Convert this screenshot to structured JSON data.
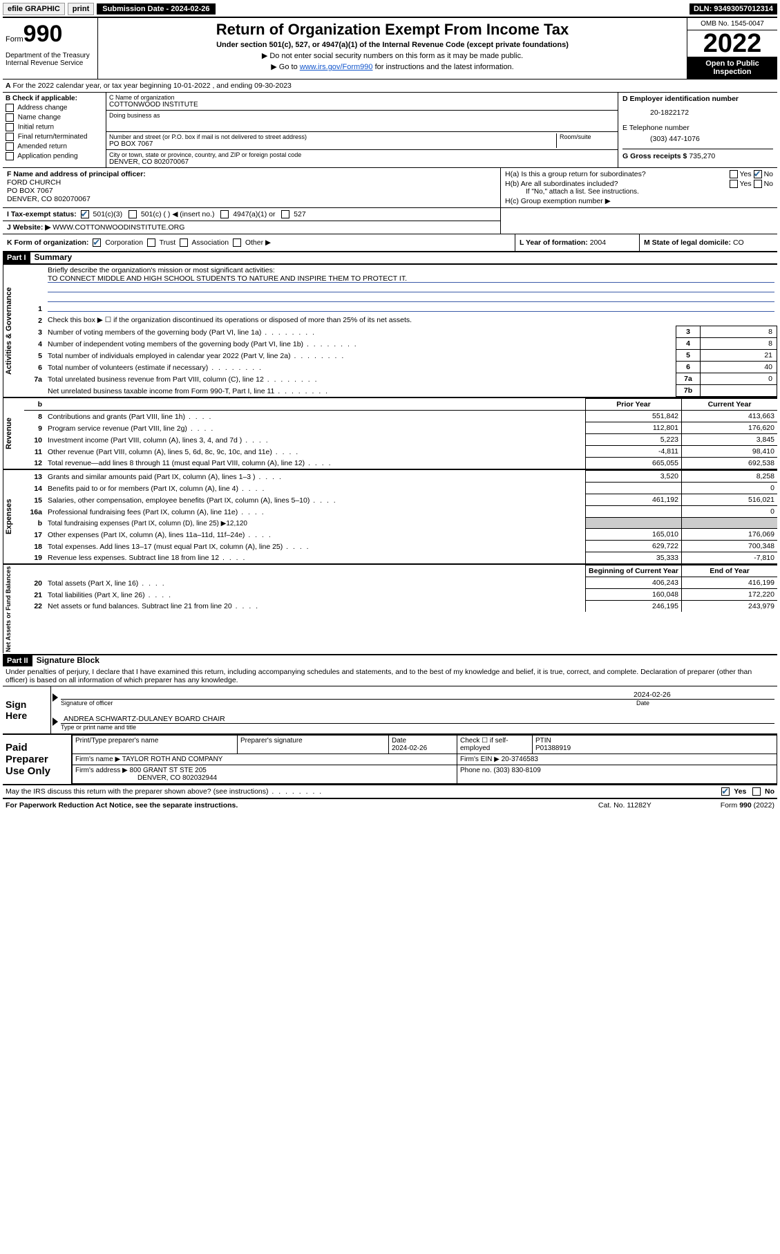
{
  "topbar": {
    "efile": "efile GRAPHIC",
    "print": "print",
    "submission": "Submission Date - 2024-02-26",
    "dln": "DLN: 93493057012314"
  },
  "header": {
    "form_word": "Form",
    "form_num": "990",
    "dept": "Department of the Treasury Internal Revenue Service",
    "title": "Return of Organization Exempt From Income Tax",
    "sub": "Under section 501(c), 527, or 4947(a)(1) of the Internal Revenue Code (except private foundations)",
    "note1": "▶ Do not enter social security numbers on this form as it may be made public.",
    "note2_pre": "▶ Go to ",
    "note2_link": "www.irs.gov/Form990",
    "note2_post": " for instructions and the latest information.",
    "omb": "OMB No. 1545-0047",
    "year": "2022",
    "open": "Open to Public Inspection"
  },
  "rowA": {
    "label_a": "A",
    "text": "For the 2022 calendar year, or tax year beginning 10-01-2022   , and ending 09-30-2023"
  },
  "colB": {
    "label": "B Check if applicable:",
    "items": [
      "Address change",
      "Name change",
      "Initial return",
      "Final return/terminated",
      "Amended return",
      "Application pending"
    ]
  },
  "colC": {
    "c_label": "C Name of organization",
    "org": "COTTONWOOD INSTITUTE",
    "dba_label": "Doing business as",
    "addr_label": "Number and street (or P.O. box if mail is not delivered to street address)",
    "room": "Room/suite",
    "addr": "PO BOX 7067",
    "city_label": "City or town, state or province, country, and ZIP or foreign postal code",
    "city": "DENVER, CO  802070067"
  },
  "colD": {
    "d_label": "D Employer identification number",
    "ein": "20-1822172",
    "e_label": "E Telephone number",
    "phone": "(303) 447-1076",
    "g_label": "G Gross receipts $",
    "gross": "735,270"
  },
  "rowF": {
    "f_label": "F Name and address of principal officer:",
    "name": "FORD CHURCH",
    "addr": "PO BOX 7067",
    "city": "DENVER, CO  802070067",
    "ha": "H(a)  Is this a group return for subordinates?",
    "ha_yes": "Yes",
    "ha_no": "No",
    "hb": "H(b)  Are all subordinates included?",
    "hb_note": "If \"No,\" attach a list. See instructions.",
    "hc": "H(c)  Group exemption number ▶"
  },
  "rowI": {
    "label": "I   Tax-exempt status:",
    "opts": [
      "501(c)(3)",
      "501(c) (  ) ◀ (insert no.)",
      "4947(a)(1) or",
      "527"
    ]
  },
  "rowJ": {
    "label": "J   Website: ▶",
    "url": "WWW.COTTONWOODINSTITUTE.ORG"
  },
  "rowK": {
    "label": "K Form of organization:",
    "opts": [
      "Corporation",
      "Trust",
      "Association",
      "Other ▶"
    ],
    "l_label": "L Year of formation:",
    "l_val": "2004",
    "m_label": "M State of legal domicile:",
    "m_val": "CO"
  },
  "part1": {
    "hdr": "Part I",
    "title": "Summary",
    "side1": "Activities & Governance",
    "side2": "Revenue",
    "side3": "Expenses",
    "side4": "Net Assets or Fund Balances",
    "q1_label": "Briefly describe the organization's mission or most significant activities:",
    "q1_text": "TO CONNECT MIDDLE AND HIGH SCHOOL STUDENTS TO NATURE AND INSPIRE THEM TO PROTECT IT.",
    "q2": "Check this box ▶ ☐  if the organization discontinued its operations or disposed of more than 25% of its net assets.",
    "lines_gov": [
      {
        "n": "3",
        "d": "Number of voting members of the governing body (Part VI, line 1a)",
        "b": "3",
        "v": "8"
      },
      {
        "n": "4",
        "d": "Number of independent voting members of the governing body (Part VI, line 1b)",
        "b": "4",
        "v": "8"
      },
      {
        "n": "5",
        "d": "Total number of individuals employed in calendar year 2022 (Part V, line 2a)",
        "b": "5",
        "v": "21"
      },
      {
        "n": "6",
        "d": "Total number of volunteers (estimate if necessary)",
        "b": "6",
        "v": "40"
      },
      {
        "n": "7a",
        "d": "Total unrelated business revenue from Part VIII, column (C), line 12",
        "b": "7a",
        "v": "0"
      },
      {
        "n": "",
        "d": "Net unrelated business taxable income from Form 990-T, Part I, line 11",
        "b": "7b",
        "v": ""
      }
    ],
    "col_prior": "Prior Year",
    "col_curr": "Current Year",
    "col_begin": "Beginning of Current Year",
    "col_end": "End of Year",
    "lines_rev": [
      {
        "n": "8",
        "d": "Contributions and grants (Part VIII, line 1h)",
        "p": "551,842",
        "c": "413,663"
      },
      {
        "n": "9",
        "d": "Program service revenue (Part VIII, line 2g)",
        "p": "112,801",
        "c": "176,620"
      },
      {
        "n": "10",
        "d": "Investment income (Part VIII, column (A), lines 3, 4, and 7d )",
        "p": "5,223",
        "c": "3,845"
      },
      {
        "n": "11",
        "d": "Other revenue (Part VIII, column (A), lines 5, 6d, 8c, 9c, 10c, and 11e)",
        "p": "-4,811",
        "c": "98,410"
      },
      {
        "n": "12",
        "d": "Total revenue—add lines 8 through 11 (must equal Part VIII, column (A), line 12)",
        "p": "665,055",
        "c": "692,538"
      }
    ],
    "lines_exp": [
      {
        "n": "13",
        "d": "Grants and similar amounts paid (Part IX, column (A), lines 1–3 )",
        "p": "3,520",
        "c": "8,258"
      },
      {
        "n": "14",
        "d": "Benefits paid to or for members (Part IX, column (A), line 4)",
        "p": "",
        "c": "0"
      },
      {
        "n": "15",
        "d": "Salaries, other compensation, employee benefits (Part IX, column (A), lines 5–10)",
        "p": "461,192",
        "c": "516,021"
      },
      {
        "n": "16a",
        "d": "Professional fundraising fees (Part IX, column (A), line 11e)",
        "p": "",
        "c": "0"
      },
      {
        "n": "b",
        "d": "Total fundraising expenses (Part IX, column (D), line 25) ▶12,120",
        "p": null,
        "c": null
      },
      {
        "n": "17",
        "d": "Other expenses (Part IX, column (A), lines 11a–11d, 11f–24e)",
        "p": "165,010",
        "c": "176,069"
      },
      {
        "n": "18",
        "d": "Total expenses. Add lines 13–17 (must equal Part IX, column (A), line 25)",
        "p": "629,722",
        "c": "700,348"
      },
      {
        "n": "19",
        "d": "Revenue less expenses. Subtract line 18 from line 12",
        "p": "35,333",
        "c": "-7,810"
      }
    ],
    "lines_net": [
      {
        "n": "20",
        "d": "Total assets (Part X, line 16)",
        "p": "406,243",
        "c": "416,199"
      },
      {
        "n": "21",
        "d": "Total liabilities (Part X, line 26)",
        "p": "160,048",
        "c": "172,220"
      },
      {
        "n": "22",
        "d": "Net assets or fund balances. Subtract line 21 from line 20",
        "p": "246,195",
        "c": "243,979"
      }
    ]
  },
  "part2": {
    "hdr": "Part II",
    "title": "Signature Block",
    "decl": "Under penalties of perjury, I declare that I have examined this return, including accompanying schedules and statements, and to the best of my knowledge and belief, it is true, correct, and complete. Declaration of preparer (other than officer) is based on all information of which preparer has any knowledge.",
    "sign_here": "Sign Here",
    "sig_officer": "Signature of officer",
    "sig_date": "Date",
    "sig_date_val": "2024-02-26",
    "officer_name": "ANDREA SCHWARTZ-DULANEY  BOARD CHAIR",
    "type_name": "Type or print name and title",
    "paid": "Paid Preparer Use Only",
    "prep_name_lbl": "Print/Type preparer's name",
    "prep_sig_lbl": "Preparer's signature",
    "prep_date_lbl": "Date",
    "prep_date": "2024-02-26",
    "check_if": "Check ☐ if self-employed",
    "ptin_lbl": "PTIN",
    "ptin": "P01388919",
    "firm_name_lbl": "Firm's name    ▶",
    "firm_name": "TAYLOR ROTH AND COMPANY",
    "firm_ein_lbl": "Firm's EIN ▶",
    "firm_ein": "20-3746583",
    "firm_addr_lbl": "Firm's address ▶",
    "firm_addr": "800 GRANT ST STE 205",
    "firm_city": "DENVER, CO  802032944",
    "firm_phone_lbl": "Phone no.",
    "firm_phone": "(303) 830-8109",
    "discuss": "May the IRS discuss this return with the preparer shown above? (see instructions)",
    "yes": "Yes",
    "no": "No"
  },
  "footer": {
    "left": "For Paperwork Reduction Act Notice, see the separate instructions.",
    "mid": "Cat. No. 11282Y",
    "right": "Form 990 (2022)"
  },
  "colors": {
    "link": "#1155cc",
    "underline": "#3a5aa8",
    "check": "#2a6496"
  }
}
